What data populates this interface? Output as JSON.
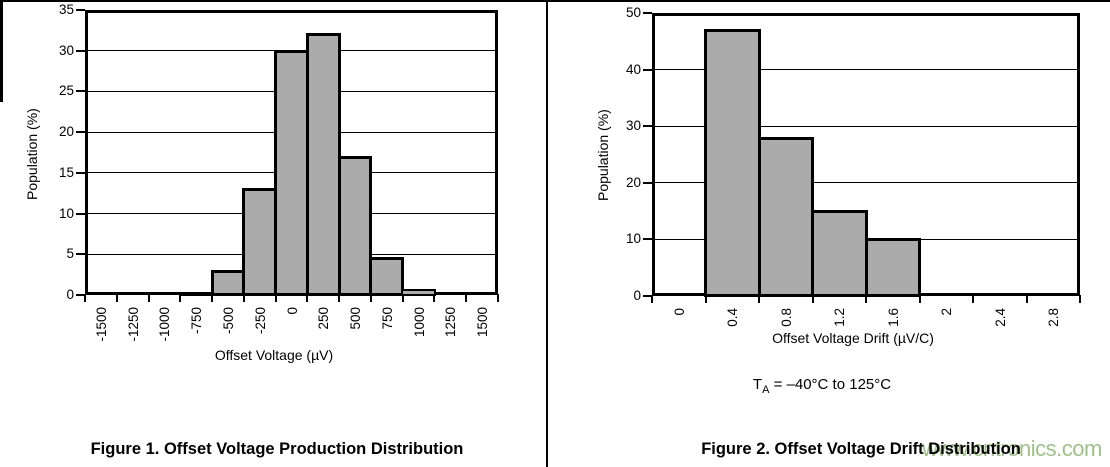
{
  "page": {
    "figure1": {
      "caption": "Figure 1. Offset Voltage Production Distribution"
    },
    "figure2": {
      "caption": "Figure 2. Offset Voltage Drift Distribution",
      "note_t": "T",
      "note_sub": "A",
      "note_rest": " = –40°C to 125°C"
    },
    "watermark": "www.cntronics.com"
  },
  "colors": {
    "bar_fill": "#ababab",
    "axis": "#000000",
    "watermark": "#94ba7d"
  },
  "chart_data": [
    {
      "type": "bar",
      "title": "Offset Voltage Production Distribution",
      "categories": [
        "-1500",
        "-1250",
        "-1000",
        "-750",
        "-500",
        "-250",
        "0",
        "250",
        "500",
        "750",
        "1000",
        "1250",
        "1500"
      ],
      "values": [
        0,
        0,
        0,
        0.3,
        3,
        13,
        30,
        32,
        17,
        4.5,
        0.6,
        0,
        0
      ],
      "xlabel": "Offset Voltage (µV)",
      "ylabel": "Population (%)",
      "ylim": [
        0,
        35
      ],
      "yticks": [
        0,
        5,
        10,
        15,
        20,
        25,
        30,
        35
      ],
      "grid": true,
      "legend": "none",
      "bar_gap": 0
    },
    {
      "type": "bar",
      "title": "Offset Voltage Drift Distribution",
      "categories": [
        "0",
        "0.4",
        "0.8",
        "1.2",
        "1.6",
        "2",
        "2.4",
        "2.8"
      ],
      "values": [
        0,
        47,
        28,
        15,
        10,
        0,
        0,
        0
      ],
      "xlabel": "Offset Voltage Drift (µV/C)",
      "ylabel": "Population (%)",
      "ylim": [
        0,
        50
      ],
      "yticks": [
        0,
        10,
        20,
        30,
        40,
        50
      ],
      "grid": true,
      "legend": "none",
      "bar_gap": 0
    }
  ]
}
